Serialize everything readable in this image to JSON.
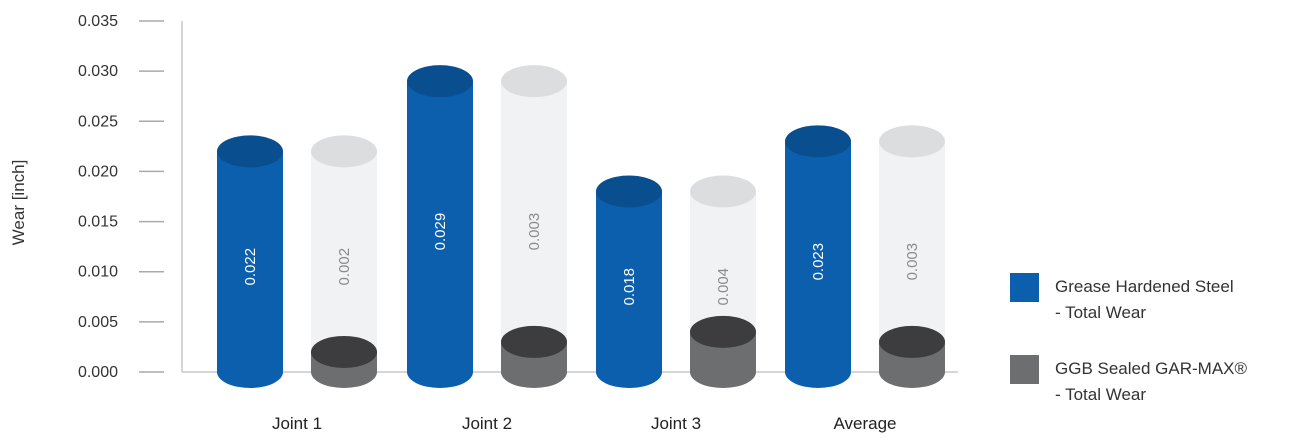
{
  "chart_data": {
    "type": "bar",
    "title": "",
    "xlabel": "",
    "ylabel": "Wear [inch]",
    "ylim": [
      0,
      0.035
    ],
    "yticks": [
      "0.000",
      "0.005",
      "0.010",
      "0.015",
      "0.020",
      "0.025",
      "0.030",
      "0.035"
    ],
    "categories": [
      "Joint 1",
      "Joint 2",
      "Joint 3",
      "Average"
    ],
    "series": [
      {
        "name": "Grease Hardened Steel - Total Wear",
        "legend_lines": [
          "Grease Hardened Steel",
          "- Total Wear"
        ],
        "color": "#0b5fad",
        "values": [
          0.022,
          0.029,
          0.018,
          0.023
        ],
        "labels": [
          "0.022",
          "0.029",
          "0.018",
          "0.023"
        ]
      },
      {
        "name": "GGB Sealed GAR-MAX® - Total Wear",
        "legend_lines": [
          "GGB Sealed GAR-MAX®",
          "- Total Wear"
        ],
        "color": "#6d6e70",
        "values": [
          0.002,
          0.003,
          0.004,
          0.003
        ],
        "labels": [
          "0.002",
          "0.003",
          "0.004",
          "0.003"
        ]
      }
    ],
    "grid": false,
    "legend_position": "right"
  }
}
